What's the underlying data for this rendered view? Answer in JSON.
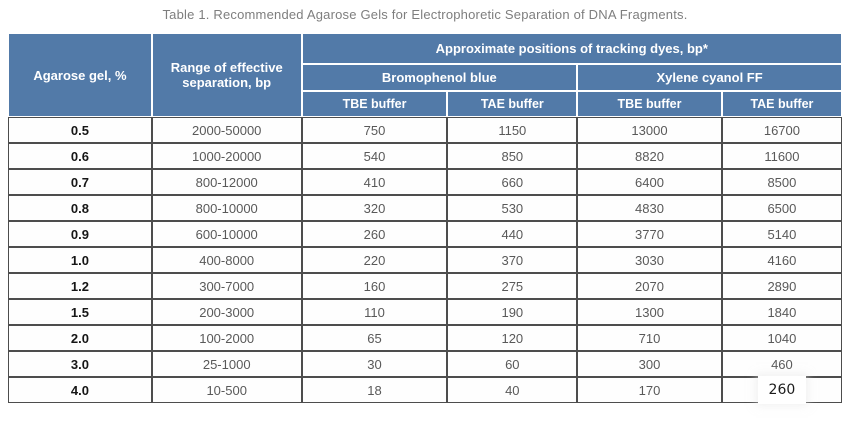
{
  "title": "Table 1. Recommended Agarose Gels for Electrophoretic Separation of DNA Fragments.",
  "colors": {
    "header_bg": "#527AA8",
    "header_text": "#ffffff",
    "body_border": "#4d4d4d",
    "body_text": "#595959",
    "gel_column_text": "#161616",
    "caption_text": "#7e7e7e",
    "page_bg": "#ffffff"
  },
  "table": {
    "headers": {
      "agarose": "Agarose gel, %",
      "range": "Range of effective separation, bp",
      "tracking": "Approximate positions of tracking dyes, bp*",
      "bromophenol": "Bromophenol blue",
      "xylene": "Xylene cyanol FF",
      "buffers": [
        "TBE buffer",
        "TAE buffer",
        "TBE buffer",
        "TAE buffer"
      ]
    },
    "rows": [
      [
        "0.5",
        "2000-50000",
        "750",
        "1150",
        "13000",
        "16700"
      ],
      [
        "0.6",
        "1000-20000",
        "540",
        "850",
        "8820",
        "11600"
      ],
      [
        "0.7",
        "800-12000",
        "410",
        "660",
        "6400",
        "8500"
      ],
      [
        "0.8",
        "800-10000",
        "320",
        "530",
        "4830",
        "6500"
      ],
      [
        "0.9",
        "600-10000",
        "260",
        "440",
        "3770",
        "5140"
      ],
      [
        "1.0",
        "400-8000",
        "220",
        "370",
        "3030",
        "4160"
      ],
      [
        "1.2",
        "300-7000",
        "160",
        "275",
        "2070",
        "2890"
      ],
      [
        "1.5",
        "200-3000",
        "110",
        "190",
        "1300",
        "1840"
      ],
      [
        "2.0",
        "100-2000",
        "65",
        "120",
        "710",
        "1040"
      ],
      [
        "3.0",
        "25-1000",
        "30",
        "60",
        "300",
        "460"
      ],
      [
        "4.0",
        "10-500",
        "18",
        "40",
        "170",
        "260"
      ]
    ],
    "edited_cell": {
      "row": 10,
      "col": 5
    }
  }
}
